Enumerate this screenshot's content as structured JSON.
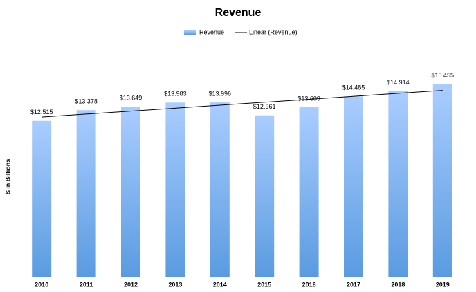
{
  "chart_data": {
    "type": "bar",
    "title": "Revenue",
    "y_label": "$ in Billions",
    "categories": [
      "2010",
      "2011",
      "2012",
      "2013",
      "2014",
      "2015",
      "2016",
      "2017",
      "2018",
      "2019"
    ],
    "series": [
      {
        "name": "Revenue",
        "color": "#5a9be0",
        "values": [
          12.515,
          13.378,
          13.649,
          13.983,
          13.996,
          12.961,
          13.609,
          14.485,
          14.914,
          15.455
        ],
        "value_labels": [
          "$12.515",
          "$13.378",
          "$13.649",
          "$13.983",
          "$13.996",
          "$12.961",
          "$13.609",
          "$14.485",
          "$14.914",
          "$15.455"
        ]
      }
    ],
    "trendline": {
      "name": "Linear (Revenue)",
      "kind": "linear",
      "color": "#000000"
    },
    "ylim": [
      0,
      18
    ]
  }
}
